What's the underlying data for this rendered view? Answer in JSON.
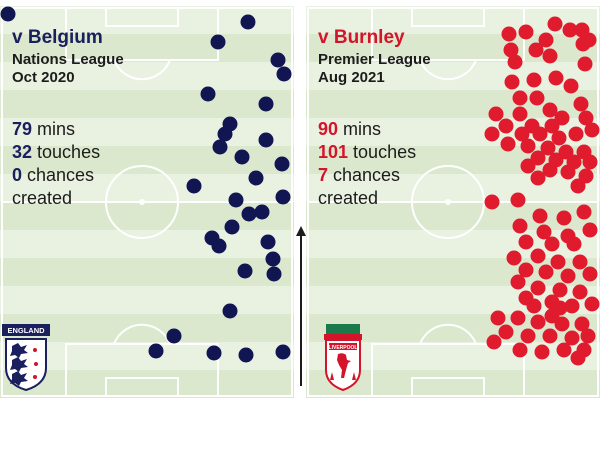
{
  "panels": [
    {
      "opponent": "v Belgium",
      "competition": "Nations League",
      "date": "Oct 2020",
      "minutes": "79",
      "minutes_label": " mins",
      "touches": "32",
      "touches_label": " touches",
      "chances": "0",
      "chances_label": " chances",
      "created_label": "created",
      "accent": "#1a1f5e",
      "dot_color": "#111653",
      "crest_label": "ENGLAND"
    },
    {
      "opponent": "v Burnley",
      "competition": "Premier League",
      "date": "Aug 2021",
      "minutes": "90",
      "minutes_label": " mins",
      "touches": "101",
      "touches_label": " touches",
      "chances": "7",
      "chances_label": " chances",
      "created_label": "created",
      "accent": "#d4142a",
      "dot_color": "#e11b2e",
      "crest_label": "LIVERPOOL"
    }
  ],
  "colors": {
    "pitch_light": "#e9f1e0",
    "pitch_dark": "#dbe8ce",
    "pitch_lines": "#ffffff",
    "arrow": "#1c1c1c"
  },
  "icons": [
    "england-crest-icon",
    "liverpool-crest-icon",
    "attack-direction-arrow-icon"
  ]
}
